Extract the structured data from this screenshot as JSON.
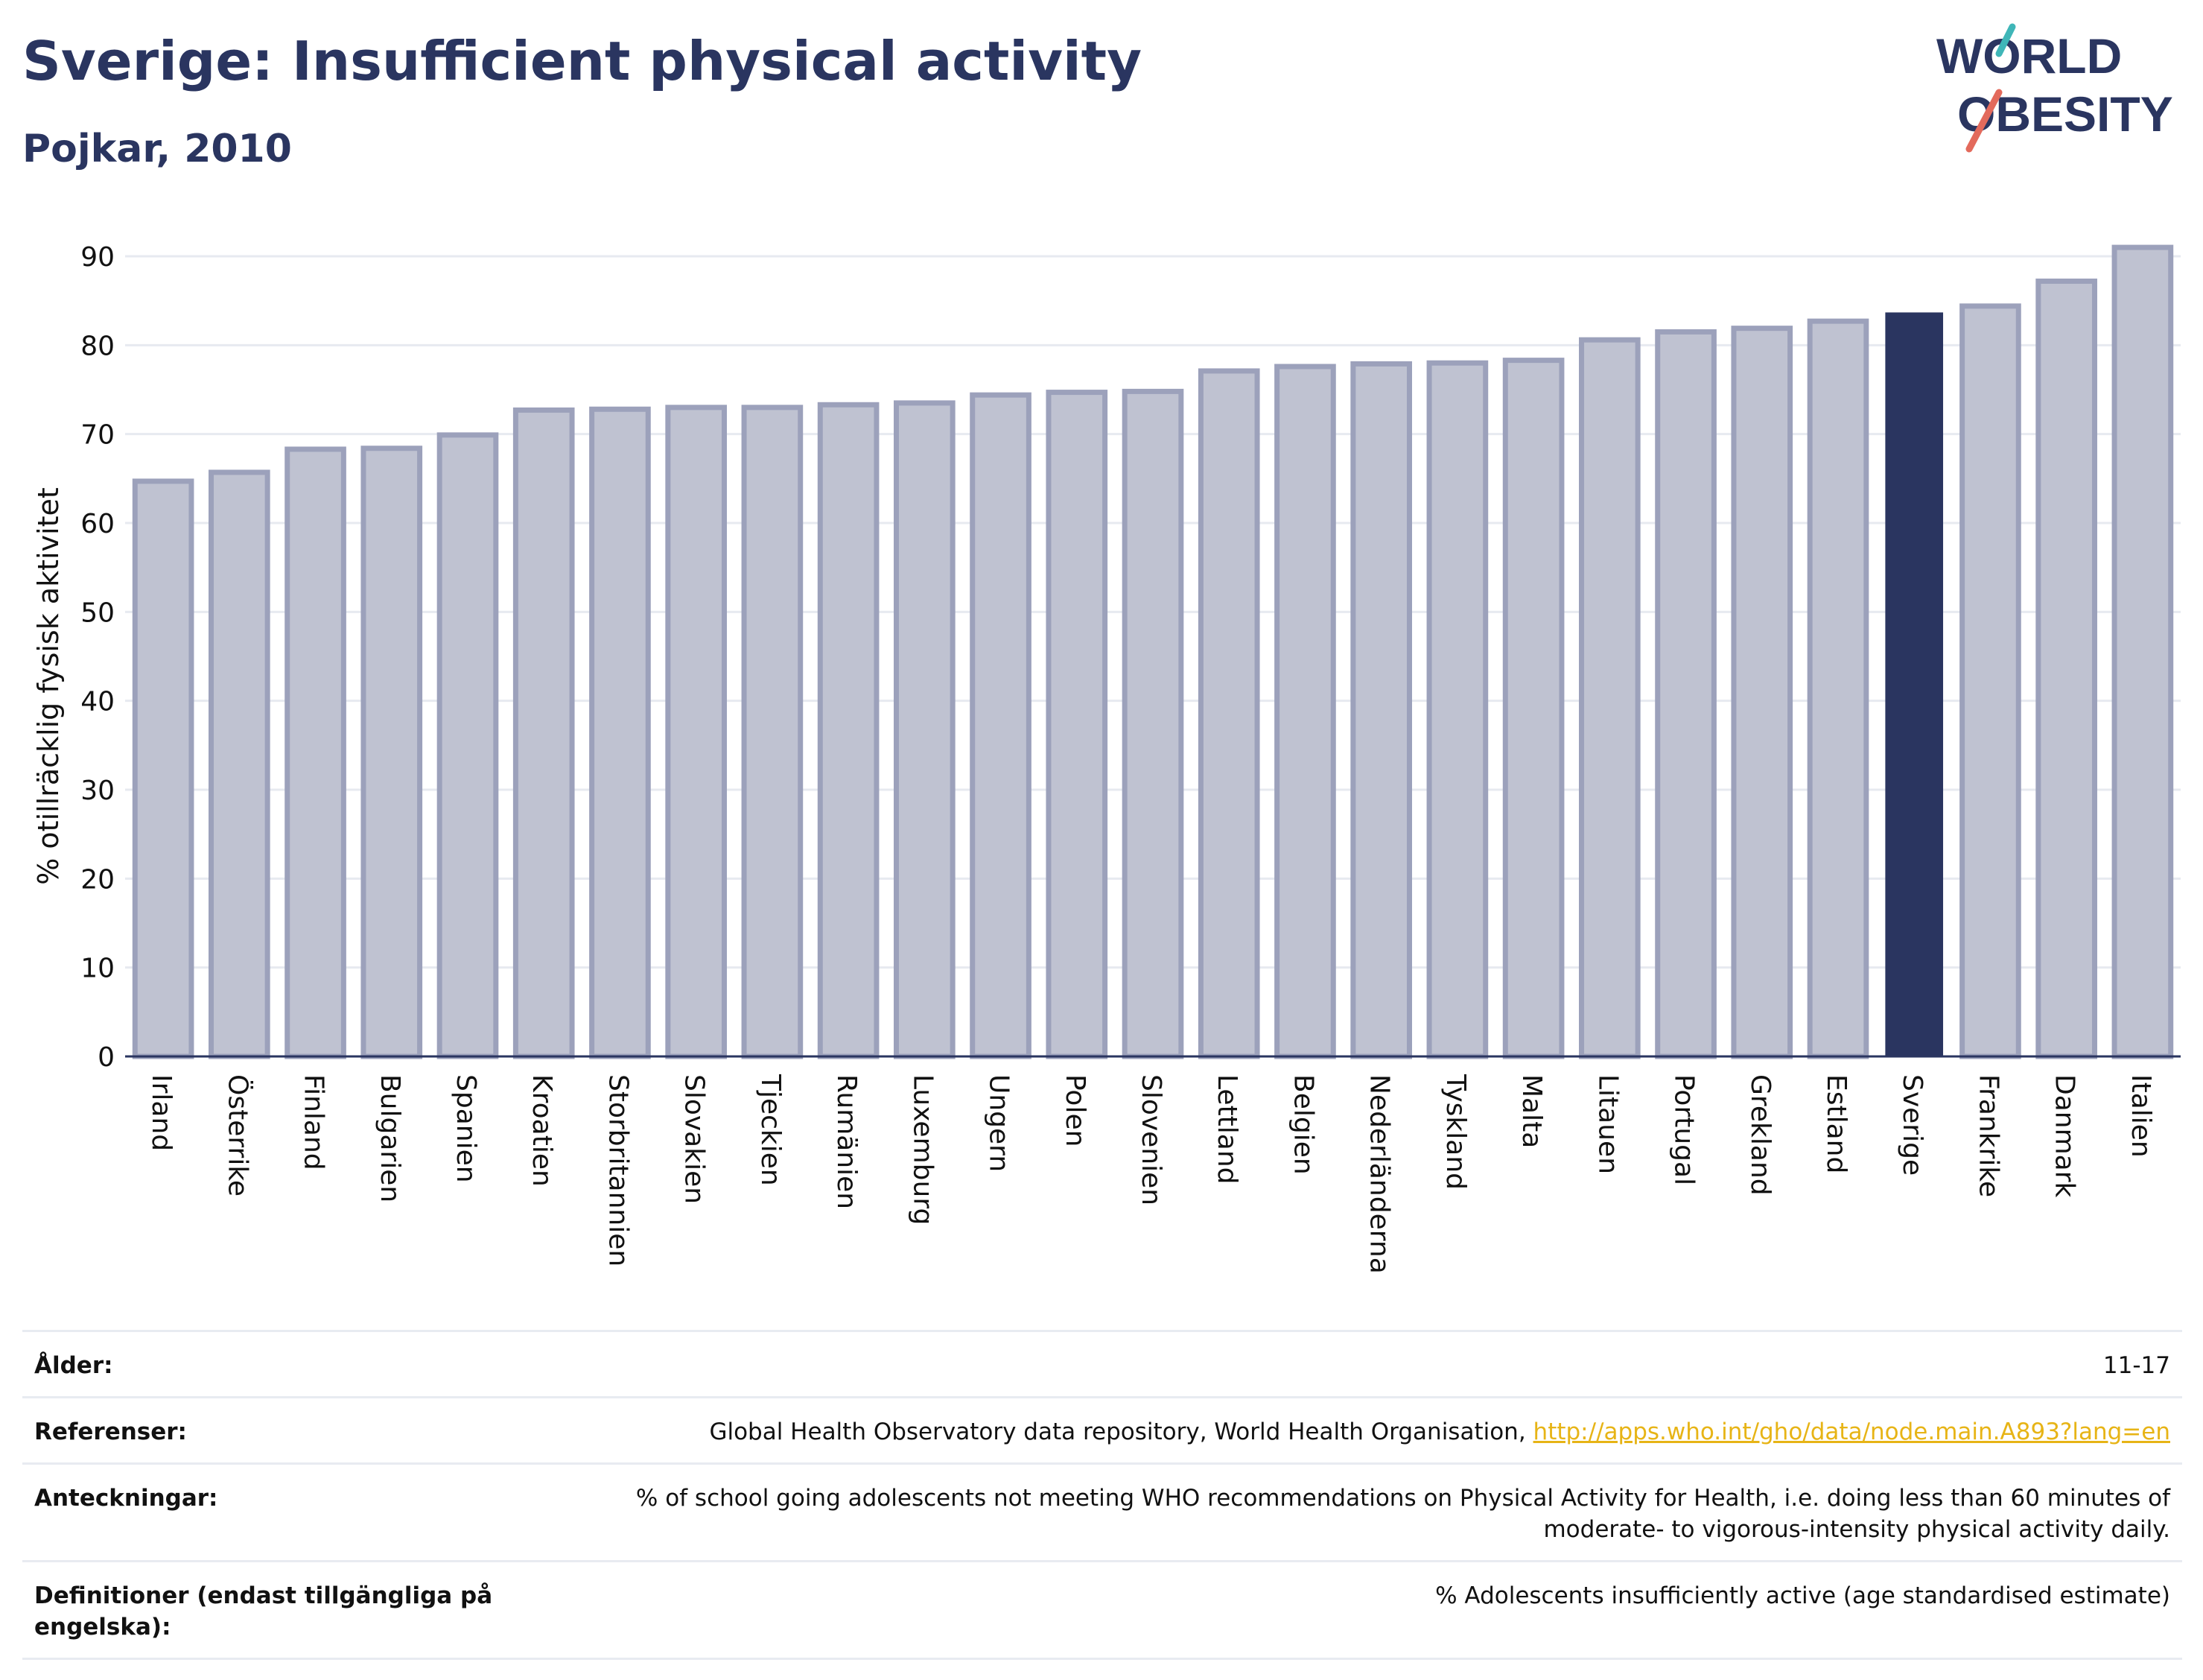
{
  "header": {
    "title": "Sverige: Insufficient physical activity",
    "subtitle": "Pojkar, 2010",
    "logo_text_line1": "WORLD",
    "logo_text_line2": "OBESITY"
  },
  "colors": {
    "highlight_bar": "#2a3560",
    "default_bar_fill": "#bfc2d1",
    "default_bar_stroke": "#9ca1bb",
    "text": "#2a3560",
    "gridline": "#e7eaf0",
    "link": "#e7b416",
    "logo_teal": "#3fb6b8",
    "logo_red": "#e36a5c"
  },
  "chart_data": {
    "type": "bar",
    "title": "Sverige: Insufficient physical activity",
    "subtitle": "Pojkar, 2010",
    "ylabel": "% otillräcklig fysisk aktivitet",
    "xlabel": "",
    "ylim": [
      0,
      90
    ],
    "yticks": [
      0,
      10,
      20,
      30,
      40,
      50,
      60,
      70,
      80,
      90
    ],
    "grid": true,
    "highlight": "Sverige",
    "categories": [
      "Irland",
      "Österrike",
      "Finland",
      "Bulgarien",
      "Spanien",
      "Kroatien",
      "Storbritannien",
      "Slovakien",
      "Tjeckien",
      "Rumänien",
      "Luxemburg",
      "Ungern",
      "Polen",
      "Slovenien",
      "Lettland",
      "Belgien",
      "Nederländerna",
      "Tyskland",
      "Malta",
      "Litauen",
      "Portugal",
      "Grekland",
      "Estland",
      "Sverige",
      "Frankrike",
      "Danmark",
      "Italien"
    ],
    "values": [
      64.7,
      65.7,
      68.3,
      68.4,
      69.9,
      72.7,
      72.8,
      73.0,
      73.0,
      73.3,
      73.5,
      74.4,
      74.7,
      74.8,
      77.1,
      77.6,
      77.9,
      78.0,
      78.3,
      80.6,
      81.5,
      81.9,
      82.7,
      83.6,
      84.4,
      87.2,
      91.0
    ]
  },
  "info": {
    "rows": [
      {
        "label": "Ålder:",
        "value": "11-17"
      },
      {
        "label": "Referenser:",
        "value": "Global Health Observatory data repository, World Health Organisation, ",
        "link": "http://apps.who.int/gho/data/node.main.A893?lang=en"
      },
      {
        "label": "Anteckningar:",
        "value": "% of school going adolescents not meeting WHO recommendations on Physical Activity for Health, i.e. doing less than 60 minutes of moderate- to vigorous-intensity physical activity daily."
      },
      {
        "label": "Definitioner (endast tillgängliga på engelska):",
        "value": "% Adolescents insufficiently active (age standardised estimate)"
      }
    ]
  }
}
